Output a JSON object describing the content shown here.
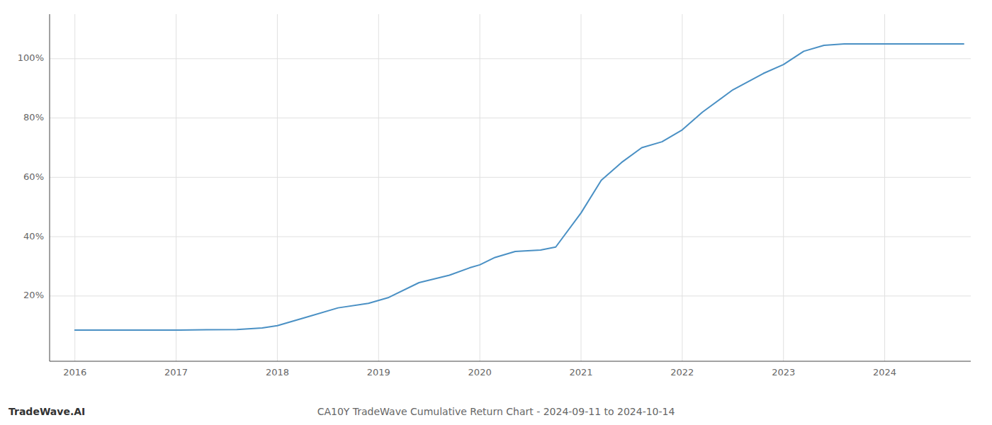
{
  "chart_data": {
    "type": "line",
    "title": "CA10Y TradeWave Cumulative Return Chart - 2024-09-11 to 2024-10-14",
    "annotations": [
      "TradeWave.AI"
    ],
    "x": [
      2016.0,
      2016.5,
      2016.8,
      2017.0,
      2017.3,
      2017.6,
      2017.85,
      2018.0,
      2018.3,
      2018.6,
      2018.9,
      2019.1,
      2019.4,
      2019.7,
      2019.9,
      2020.0,
      2020.15,
      2020.35,
      2020.6,
      2020.75,
      2021.0,
      2021.2,
      2021.4,
      2021.6,
      2021.8,
      2022.0,
      2022.2,
      2022.5,
      2022.8,
      2023.0,
      2023.2,
      2023.4,
      2023.6,
      2023.75,
      2024.0,
      2024.3,
      2024.6,
      2024.78
    ],
    "values": [
      8.5,
      8.5,
      8.5,
      8.5,
      8.6,
      8.7,
      9.2,
      10.0,
      13.0,
      16.0,
      17.5,
      19.5,
      24.5,
      27.0,
      29.5,
      30.5,
      33.0,
      35.0,
      35.5,
      36.5,
      48.0,
      59.0,
      65.0,
      70.0,
      72.0,
      76.0,
      82.0,
      89.5,
      95.0,
      98.0,
      102.5,
      104.5,
      105.0,
      105.0,
      105.0,
      105.0,
      105.0,
      105.0
    ],
    "color": "#4a90c4",
    "xlim": [
      2015.75,
      2024.85
    ],
    "ylim": [
      -2,
      115
    ],
    "xticks": [
      2016,
      2017,
      2018,
      2019,
      2020,
      2021,
      2022,
      2023,
      2024
    ],
    "yticks": [
      {
        "value": 20,
        "label": "20%"
      },
      {
        "value": 40,
        "label": "40%"
      },
      {
        "value": 60,
        "label": "60%"
      },
      {
        "value": 80,
        "label": "80%"
      },
      {
        "value": 100,
        "label": "100%"
      }
    ],
    "grid": true
  }
}
